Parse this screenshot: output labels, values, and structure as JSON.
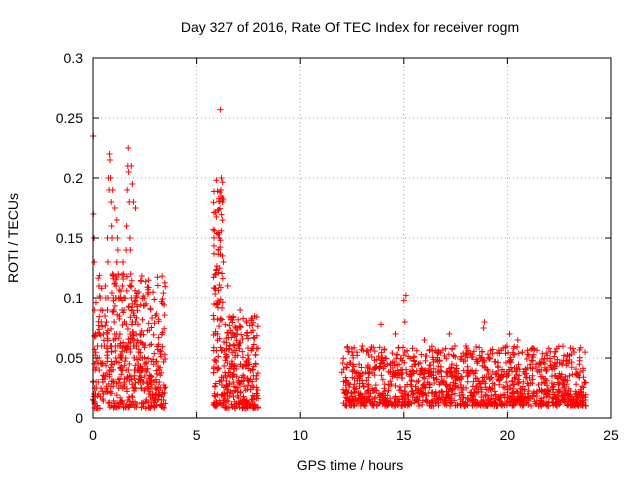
{
  "chart_data": {
    "type": "scatter",
    "title": "Day 327 of 2016, Rate Of TEC Index for receiver rogm",
    "xlabel": "GPS time / hours",
    "ylabel": "ROTI / TECUs",
    "xlim": [
      0,
      25
    ],
    "ylim": [
      0,
      0.3
    ],
    "xticks": [
      0,
      5,
      10,
      15,
      20,
      25
    ],
    "yticks": [
      0,
      0.05,
      0.1,
      0.15,
      0.2,
      0.25,
      0.3
    ],
    "ytick_labels": [
      "0",
      "0.05",
      "0.1",
      "0.15",
      "0.2",
      "0.25",
      "0.3"
    ],
    "xtick_labels": [
      "0",
      "5",
      "10",
      "15",
      "20",
      "25"
    ],
    "grid": true,
    "marker": "+",
    "color": "#ff0000",
    "series": [
      {
        "x": [
          0.0,
          0.02,
          0.05,
          0.06,
          0.08,
          0.1,
          0.12,
          0.15,
          0.18,
          0.2,
          0.22,
          0.25,
          0.28,
          0.3,
          0.32,
          0.35,
          0.38,
          0.4,
          0.42,
          0.45,
          0.48,
          0.5,
          0.52,
          0.55,
          0.58,
          0.6,
          0.62,
          0.65,
          0.68,
          0.7,
          0.72,
          0.75,
          0.78,
          0.8,
          0.82,
          0.85,
          0.88,
          0.9,
          0.92,
          0.95,
          0.98,
          1.0,
          1.02,
          1.05,
          1.08,
          1.1,
          1.12,
          1.15,
          1.18,
          1.2,
          1.22,
          1.25,
          1.28,
          1.3,
          1.32,
          1.35,
          1.38,
          1.4,
          1.42,
          1.45,
          1.48,
          1.5,
          1.52,
          1.55,
          1.58,
          1.6,
          1.62,
          1.65,
          1.68,
          1.7,
          1.72,
          1.75,
          1.78,
          1.8,
          1.82,
          1.85,
          1.88,
          1.9,
          1.92,
          1.95,
          1.98,
          2.0,
          2.02,
          2.05,
          2.08,
          2.1,
          2.12,
          2.15,
          2.18,
          2.2,
          2.22,
          2.25,
          2.28,
          2.3,
          2.32,
          2.35,
          2.38,
          2.4,
          2.45,
          2.5,
          2.55,
          2.6,
          2.65,
          2.7,
          2.75,
          2.8,
          2.85,
          2.9,
          2.95,
          3.0,
          3.05,
          3.1,
          3.15,
          3.2,
          3.25,
          3.3,
          3.35,
          3.4,
          0.05,
          0.1,
          0.3,
          0.5,
          0.7,
          0.9,
          1.1,
          1.3,
          1.5,
          1.7,
          1.9,
          2.1,
          2.3,
          2.5,
          0.02,
          0.08,
          0.4,
          0.6,
          0.8,
          1.0,
          1.2,
          1.4,
          1.6,
          1.8,
          2.0,
          2.2,
          2.4,
          2.6,
          2.8,
          3.0,
          3.2,
          0.95,
          1.05,
          1.15,
          1.85,
          1.9,
          1.95,
          2.05,
          0.85,
          0.9,
          1.0,
          1.1,
          1.7,
          1.75,
          1.8,
          2.2,
          2.25,
          2.3
        ],
        "y": [
          0.235,
          0.17,
          0.15,
          0.13,
          0.09,
          0.04,
          0.02,
          0.03,
          0.025,
          0.05,
          0.06,
          0.03,
          0.02,
          0.04,
          0.07,
          0.1,
          0.09,
          0.08,
          0.06,
          0.045,
          0.03,
          0.02,
          0.035,
          0.06,
          0.085,
          0.11,
          0.1,
          0.08,
          0.07,
          0.15,
          0.13,
          0.2,
          0.19,
          0.22,
          0.215,
          0.2,
          0.18,
          0.16,
          0.15,
          0.12,
          0.1,
          0.09,
          0.08,
          0.07,
          0.06,
          0.1,
          0.11,
          0.13,
          0.15,
          0.14,
          0.12,
          0.1,
          0.085,
          0.07,
          0.06,
          0.05,
          0.04,
          0.09,
          0.11,
          0.13,
          0.12,
          0.1,
          0.08,
          0.06,
          0.05,
          0.14,
          0.16,
          0.19,
          0.21,
          0.225,
          0.205,
          0.18,
          0.15,
          0.14,
          0.12,
          0.1,
          0.09,
          0.08,
          0.07,
          0.06,
          0.05,
          0.04,
          0.06,
          0.08,
          0.07,
          0.06,
          0.05,
          0.04,
          0.045,
          0.055,
          0.05,
          0.04,
          0.035,
          0.03,
          0.025,
          0.04,
          0.05,
          0.04,
          0.03,
          0.035,
          0.04,
          0.03,
          0.025,
          0.02,
          0.03,
          0.035,
          0.025,
          0.02,
          0.03,
          0.025,
          0.02,
          0.015,
          0.02,
          0.03,
          0.025,
          0.015,
          0.02,
          0.015,
          0.02,
          0.025,
          0.05,
          0.07,
          0.09,
          0.06,
          0.1,
          0.07,
          0.09,
          0.04,
          0.08,
          0.06,
          0.05,
          0.045,
          0.03,
          0.025,
          0.045,
          0.035,
          0.04,
          0.03,
          0.06,
          0.05,
          0.04,
          0.07,
          0.05,
          0.04,
          0.03,
          0.03,
          0.035,
          0.025,
          0.02,
          0.19,
          0.175,
          0.165,
          0.21,
          0.195,
          0.18,
          0.175,
          0.06,
          0.055,
          0.065,
          0.05,
          0.04,
          0.045,
          0.055,
          0.03,
          0.035,
          0.04
        ]
      }
    ],
    "clusters": [
      {
        "x_start": 0.0,
        "x_end": 3.5,
        "y_min": 0.008,
        "y_max": 0.12,
        "count": 420,
        "seed": 11
      },
      {
        "x_start": 5.8,
        "x_end": 6.3,
        "y_min": 0.01,
        "y_max": 0.2,
        "count": 130,
        "seed": 23
      },
      {
        "x_start": 6.3,
        "x_end": 8.0,
        "y_min": 0.008,
        "y_max": 0.085,
        "count": 260,
        "seed": 37
      },
      {
        "x_start": 12.0,
        "x_end": 23.8,
        "y_min": 0.01,
        "y_max": 0.06,
        "count": 1300,
        "seed": 53
      }
    ],
    "highlights": [
      {
        "x": 0.02,
        "y": 0.235
      },
      {
        "x": 6.15,
        "y": 0.257
      },
      {
        "x": 6.2,
        "y": 0.2
      },
      {
        "x": 6.18,
        "y": 0.19
      },
      {
        "x": 6.25,
        "y": 0.18
      },
      {
        "x": 6.1,
        "y": 0.15
      },
      {
        "x": 6.05,
        "y": 0.14
      },
      {
        "x": 6.3,
        "y": 0.13
      },
      {
        "x": 6.5,
        "y": 0.11
      },
      {
        "x": 7.1,
        "y": 0.09
      },
      {
        "x": 7.8,
        "y": 0.085
      },
      {
        "x": 15.1,
        "y": 0.102
      },
      {
        "x": 15.0,
        "y": 0.098
      },
      {
        "x": 15.05,
        "y": 0.08
      },
      {
        "x": 13.9,
        "y": 0.078
      },
      {
        "x": 14.6,
        "y": 0.07
      },
      {
        "x": 18.9,
        "y": 0.08
      },
      {
        "x": 18.85,
        "y": 0.075
      },
      {
        "x": 20.1,
        "y": 0.07
      },
      {
        "x": 20.5,
        "y": 0.065
      },
      {
        "x": 22.0,
        "y": 0.058
      },
      {
        "x": 22.3,
        "y": 0.055
      },
      {
        "x": 23.0,
        "y": 0.052
      },
      {
        "x": 16.0,
        "y": 0.065
      },
      {
        "x": 17.2,
        "y": 0.07
      },
      {
        "x": 18.0,
        "y": 0.06
      },
      {
        "x": 12.5,
        "y": 0.055
      },
      {
        "x": 13.0,
        "y": 0.06
      },
      {
        "x": 21.2,
        "y": 0.058
      }
    ]
  }
}
